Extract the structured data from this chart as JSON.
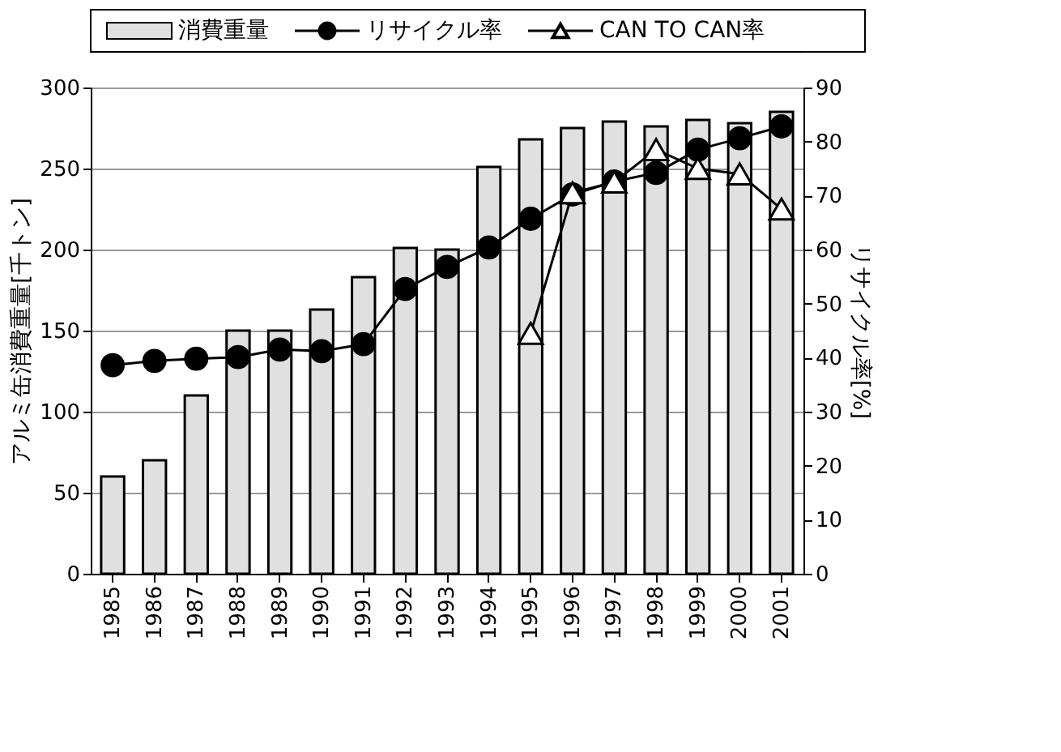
{
  "chart_data": {
    "type": "bar",
    "categories": [
      "1985",
      "1986",
      "1987",
      "1988",
      "1989",
      "1990",
      "1991",
      "1992",
      "1993",
      "1994",
      "1995",
      "1996",
      "1997",
      "1998",
      "1999",
      "2000",
      "2001"
    ],
    "series": [
      {
        "name": "消費重量",
        "color": "#e0e0e0",
        "values": [
          60,
          70,
          110,
          150,
          150,
          163,
          183,
          201,
          200,
          251,
          268,
          275,
          279,
          276,
          280,
          278,
          285
        ]
      },
      {
        "name": "リサイクル率",
        "type": "line",
        "axis": "y2",
        "color": "#000000",
        "marker": "circle",
        "values": [
          38.6,
          39.4,
          39.8,
          40.1,
          41.5,
          41.2,
          42.5,
          52.7,
          56.8,
          60.4,
          65.7,
          70.2,
          72.6,
          74.2,
          78.5,
          80.6,
          82.8
        ]
      },
      {
        "name": "CAN TO CAN率",
        "type": "line",
        "axis": "y2",
        "color": "#000000",
        "marker": "triangle",
        "values": [
          null,
          null,
          null,
          null,
          null,
          null,
          null,
          null,
          null,
          null,
          44.5,
          70.5,
          72.5,
          78.5,
          75.0,
          74.0,
          67.5
        ]
      }
    ],
    "ylabel": "アルミ缶消費重量[千トン]",
    "y2label": "リサイクル率[%]",
    "ylim": [
      0,
      300
    ],
    "yticks": [
      0,
      50,
      100,
      150,
      200,
      250,
      300
    ],
    "y2lim": [
      0,
      90
    ],
    "y2ticks": [
      0,
      10,
      20,
      30,
      40,
      50,
      60,
      70,
      80,
      90
    ],
    "grid": "y",
    "legend": "top",
    "line_style": "solid"
  }
}
